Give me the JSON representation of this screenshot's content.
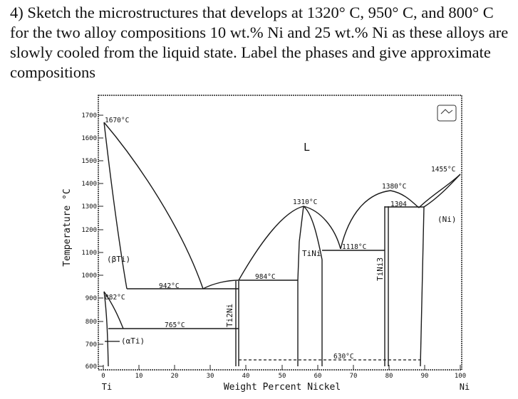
{
  "question": {
    "text": "4) Sketch the microstructures that develops at 1320° C, 950° C, and 800° C for the two alloy compositions 10 wt.% Ni and 25 wt.% Ni as these alloys are slowly cooled from the liquid state. Label the phases and give approximate compositions"
  },
  "diagram": {
    "y_axis_label": "Temperature °C",
    "x_axis_label": "Weight Percent Nickel",
    "y_ticks": [
      "600",
      "700",
      "800",
      "900",
      "1000",
      "1100",
      "1200",
      "1300",
      "1400",
      "1500",
      "1600",
      "1700"
    ],
    "x_ticks": [
      "0",
      "10",
      "20",
      "30",
      "40",
      "50",
      "60",
      "70",
      "80",
      "90",
      "100"
    ],
    "left_element": "Ti",
    "right_element": "Ni",
    "phases": {
      "liquid": "L",
      "beta_ti": "(βTi)",
      "alpha_ti": "(αTi)",
      "ti2ni": "Ti2Ni",
      "tini": "TiNi",
      "tini3": "TiNi3",
      "ni": "(Ni)"
    },
    "temperatures": {
      "t1670": "1670°C",
      "t882": "882°C",
      "t942": "942°C",
      "t765": "765°C",
      "t984": "984°C",
      "t1310": "1310°C",
      "t1118": "1118°C",
      "t1380": "1380°C",
      "t1304": "1304",
      "t630": "630°C",
      "t1455": "1455°C"
    }
  }
}
